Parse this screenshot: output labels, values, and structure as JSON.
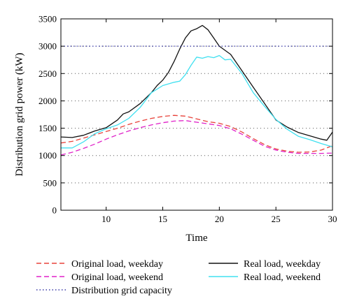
{
  "chart_data": {
    "type": "line",
    "xlabel": "Time",
    "ylabel": "Distribution grid power (kW)",
    "xlim": [
      6,
      30
    ],
    "ylim": [
      0,
      3500
    ],
    "xticks": [
      10,
      15,
      20,
      25,
      30
    ],
    "yticks": [
      0,
      500,
      1000,
      1500,
      2000,
      2500,
      3000,
      3500
    ],
    "grid": "horizontal dotted",
    "legend_position": "bottom",
    "series": [
      {
        "name": "Original load, weekday",
        "color": "#e8423a",
        "style": "dashed",
        "x": [
          6,
          7,
          8,
          9,
          10,
          11,
          12,
          13,
          14,
          15,
          16,
          17,
          18,
          19,
          20,
          21,
          22,
          23,
          24,
          25,
          26,
          27,
          28,
          29,
          30
        ],
        "y": [
          1230,
          1260,
          1320,
          1380,
          1440,
          1500,
          1570,
          1630,
          1680,
          1715,
          1735,
          1720,
          1670,
          1620,
          1590,
          1530,
          1430,
          1310,
          1200,
          1120,
          1080,
          1060,
          1065,
          1100,
          1180
        ]
      },
      {
        "name": "Original load, weekend",
        "color": "#e020c8",
        "style": "dashed",
        "x": [
          6,
          7,
          8,
          9,
          10,
          11,
          12,
          13,
          14,
          15,
          16,
          17,
          18,
          19,
          20,
          21,
          22,
          23,
          24,
          25,
          26,
          27,
          28,
          29,
          30
        ],
        "y": [
          1010,
          1060,
          1130,
          1210,
          1300,
          1380,
          1450,
          1510,
          1560,
          1600,
          1630,
          1640,
          1610,
          1580,
          1550,
          1490,
          1390,
          1280,
          1170,
          1100,
          1060,
          1040,
          1040,
          1040,
          1045
        ]
      },
      {
        "name": "Real load, weekday",
        "color": "#111111",
        "style": "solid",
        "x": [
          6,
          7,
          8,
          9,
          10,
          11,
          11.5,
          12,
          13,
          14,
          14.5,
          15,
          15.5,
          16,
          16.5,
          17,
          17.5,
          18,
          18.5,
          19,
          19.5,
          20,
          21,
          22,
          23,
          24,
          25,
          26,
          27,
          28,
          29,
          29.5,
          30
        ],
        "y": [
          1340,
          1330,
          1370,
          1450,
          1510,
          1650,
          1760,
          1800,
          1950,
          2150,
          2280,
          2380,
          2520,
          2720,
          2950,
          3150,
          3280,
          3320,
          3380,
          3300,
          3150,
          3000,
          2850,
          2550,
          2250,
          1950,
          1650,
          1520,
          1420,
          1360,
          1300,
          1280,
          1430
        ]
      },
      {
        "name": "Real load, weekend",
        "color": "#40e0f0",
        "style": "solid",
        "x": [
          6,
          7,
          8,
          9,
          10,
          11,
          12,
          13,
          14,
          15,
          16,
          16.5,
          17,
          17.5,
          18,
          18.5,
          19,
          19.5,
          20,
          20.5,
          21,
          22,
          23,
          24,
          25,
          26,
          27,
          28,
          29,
          30
        ],
        "y": [
          1140,
          1140,
          1250,
          1400,
          1490,
          1560,
          1680,
          1880,
          2150,
          2280,
          2340,
          2360,
          2480,
          2650,
          2800,
          2780,
          2810,
          2790,
          2830,
          2750,
          2760,
          2500,
          2150,
          1900,
          1660,
          1480,
          1350,
          1290,
          1220,
          1160
        ]
      },
      {
        "name": "Distribution grid capacity",
        "color": "#3a3aa8",
        "style": "dotted",
        "x": [
          6,
          30
        ],
        "y": [
          3000,
          3000
        ]
      }
    ]
  }
}
